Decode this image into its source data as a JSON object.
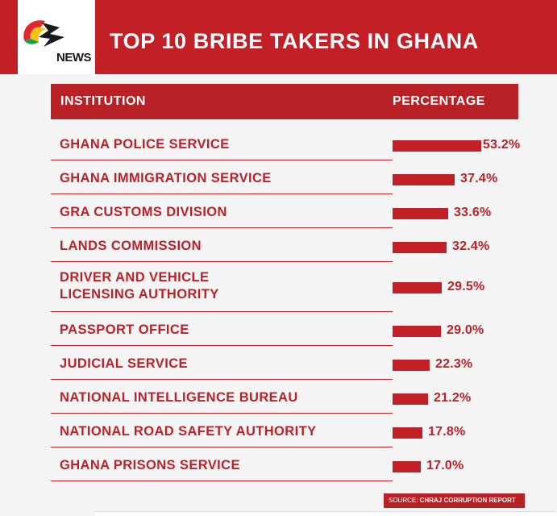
{
  "header": {
    "logo_text": "NEWS",
    "title": "TOP 10 BRIBE TAKERS IN GHANA"
  },
  "table": {
    "col_institution": "INSTITUTION",
    "col_percentage": "PERCENTAGE"
  },
  "colors": {
    "brand_red": "#c22026",
    "text_red": "#b8232a"
  },
  "chart_data": {
    "type": "bar",
    "orientation": "horizontal",
    "categories": [
      "GHANA POLICE SERVICE",
      "GHANA IMMIGRATION SERVICE",
      "GRA CUSTOMS DIVISION",
      "LANDS COMMISSION",
      "DRIVER AND VEHICLE\nLICENSING AUTHORITY",
      "PASSPORT OFFICE",
      "JUDICIAL SERVICE",
      "NATIONAL INTELLIGENCE BUREAU",
      "NATIONAL ROAD SAFETY AUTHORITY",
      "GHANA PRISONS SERVICE"
    ],
    "values": [
      53.2,
      37.4,
      33.6,
      32.4,
      29.5,
      29.0,
      22.3,
      21.2,
      17.8,
      17.0
    ],
    "value_labels": [
      "53.2%",
      "37.4%",
      "33.6%",
      "32.4%",
      "29.5%",
      "29.0%",
      "22.3%",
      "21.2%",
      "17.8%",
      "17.0%"
    ],
    "title": "TOP 10 BRIBE TAKERS IN GHANA",
    "xlabel": "PERCENTAGE",
    "ylabel": "INSTITUTION",
    "grid": false,
    "legend": "none"
  },
  "source": {
    "prefix": "SOURCE: ",
    "name": "CHRAJ CORRUPTION REPORT"
  }
}
